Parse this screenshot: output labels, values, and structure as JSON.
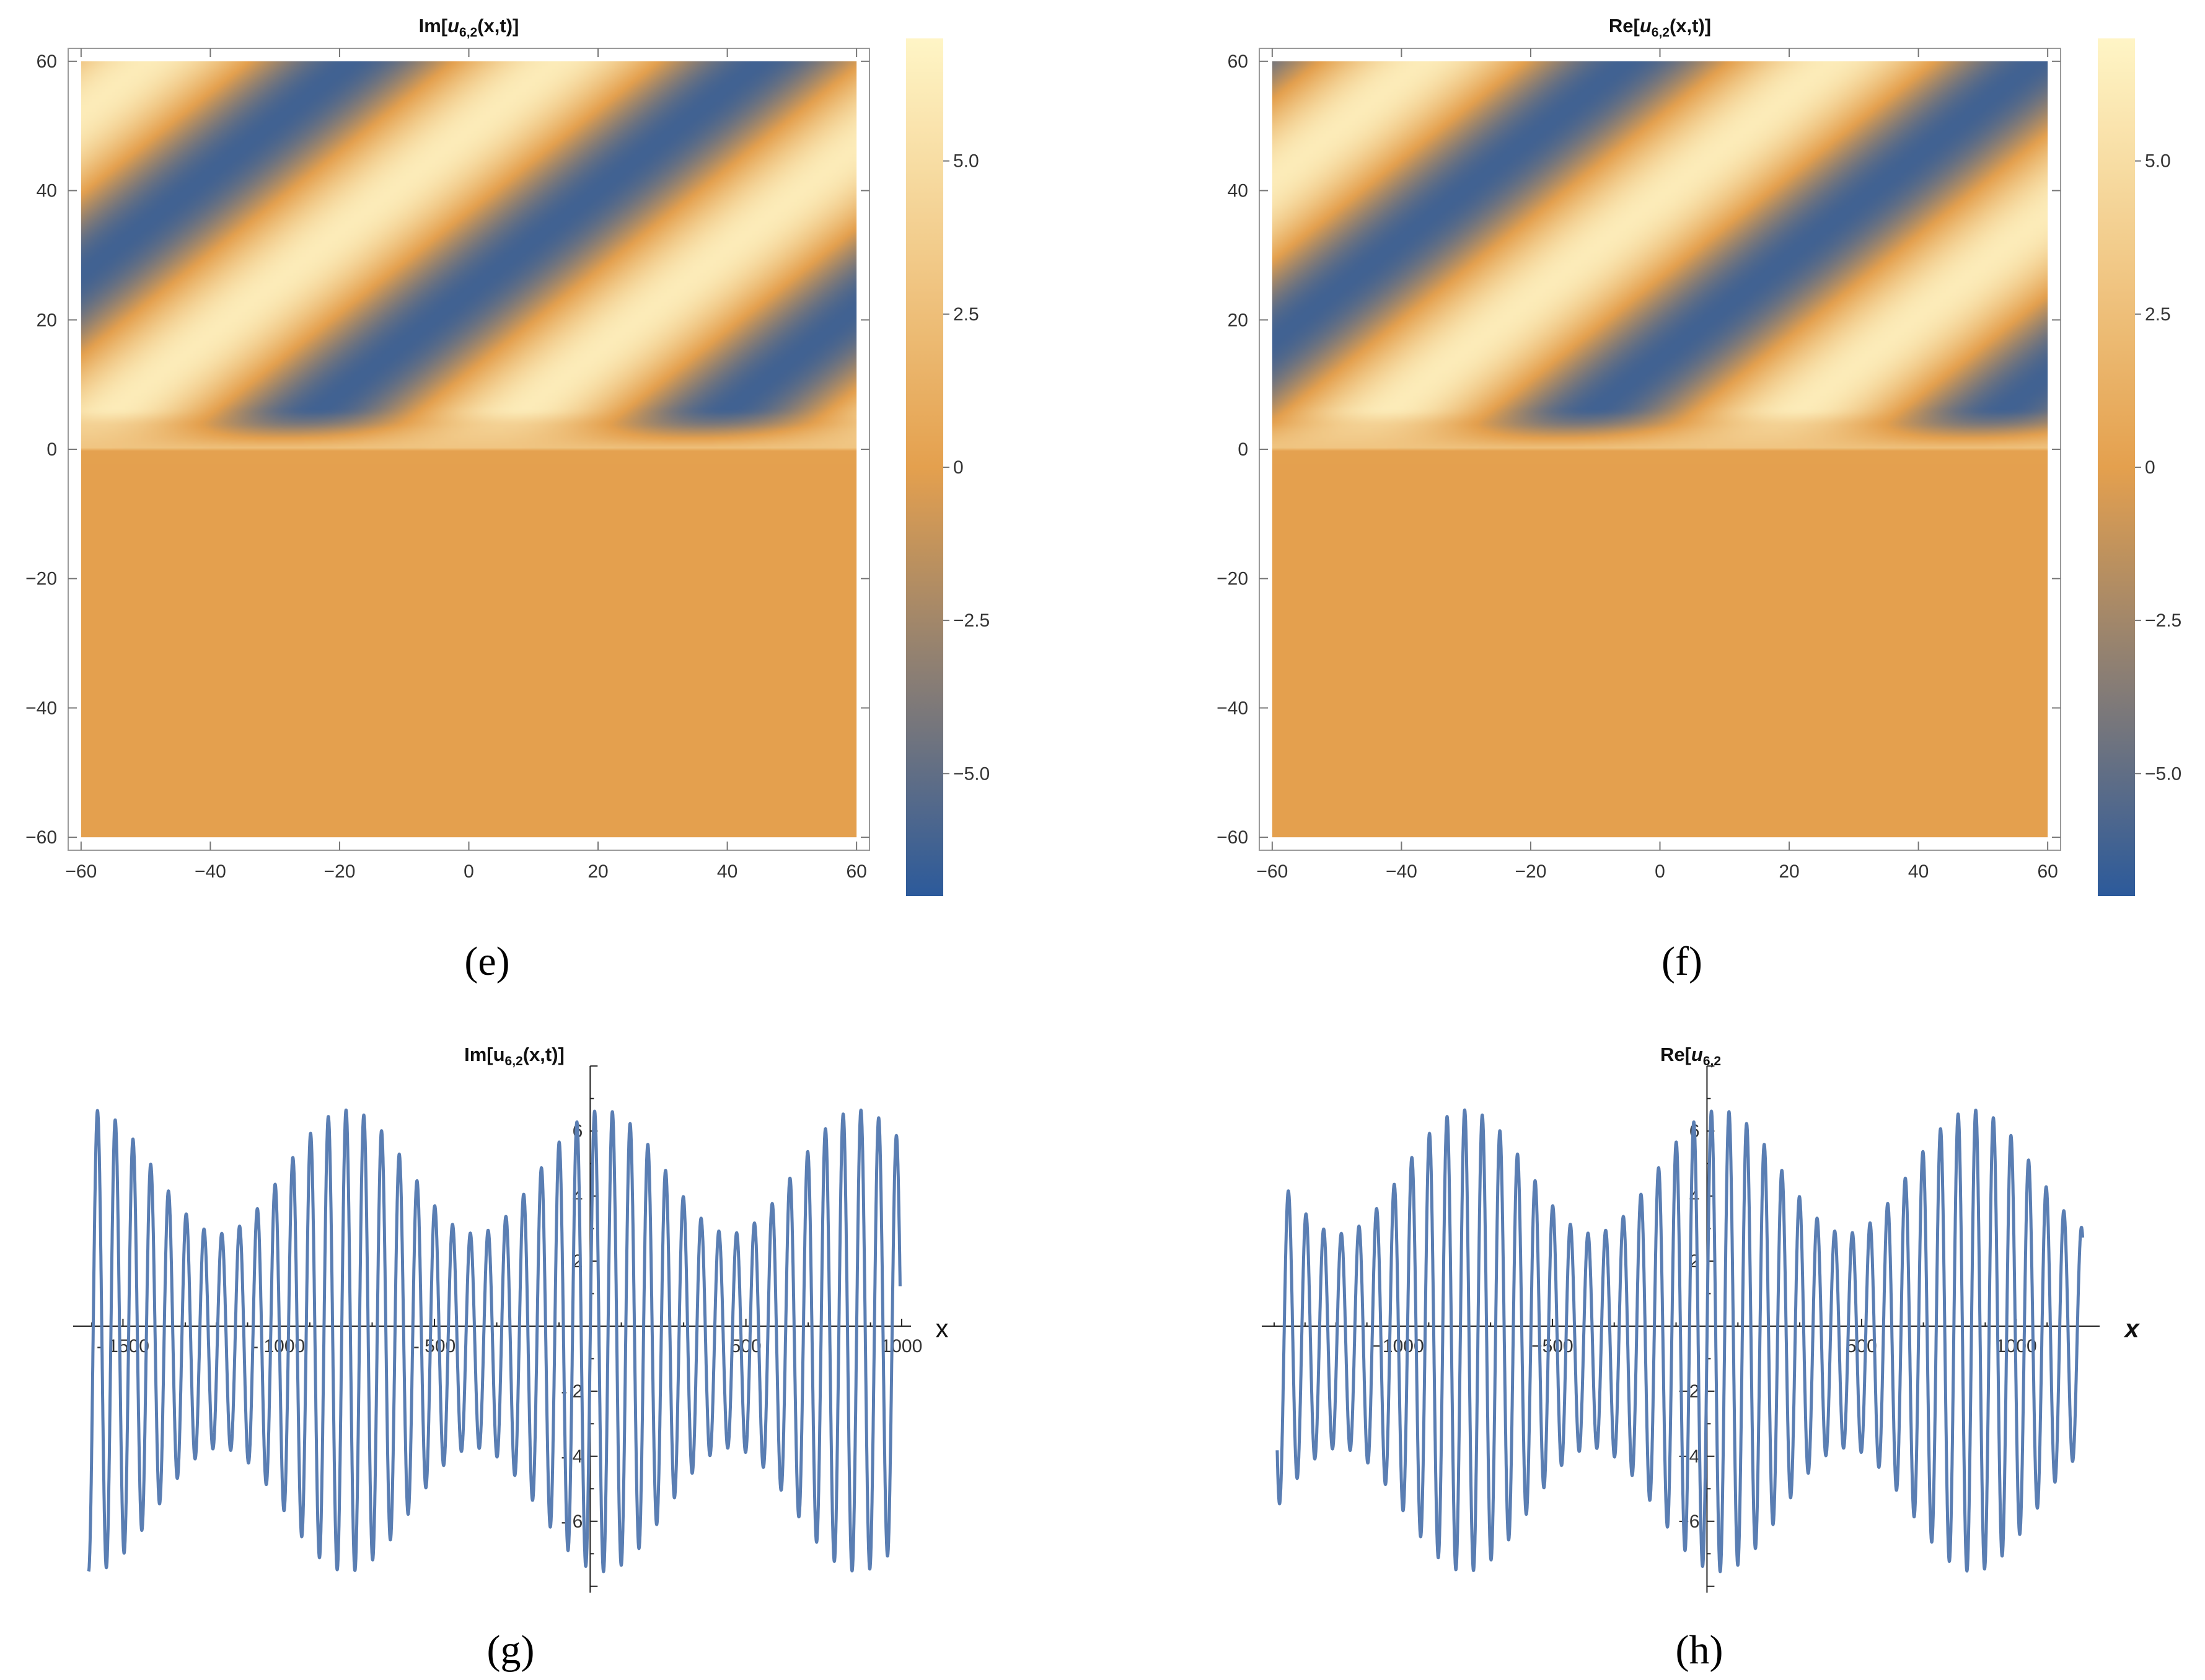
{
  "captions": [
    "(e)",
    "(f)",
    "(g)",
    "(h)"
  ],
  "chart_data": [
    {
      "panel": "e",
      "type": "heatmap",
      "title_prefix": "Im[",
      "title_var": "u",
      "title_sub": "6,2",
      "title_suffix": "(x,t)]",
      "xlim": [
        -62,
        62
      ],
      "ylim": [
        -62,
        62
      ],
      "xticks": [
        -60,
        -40,
        -20,
        0,
        20,
        40,
        60
      ],
      "yticks": [
        -60,
        -40,
        -20,
        0,
        20,
        40,
        60
      ],
      "xtick_labels": [
        "−60",
        "−40",
        "−20",
        "0",
        "20",
        "40",
        "60"
      ],
      "ytick_labels": [
        "−60",
        "−40",
        "−20",
        "0",
        "20",
        "40",
        "60"
      ],
      "colorbar": {
        "range": [
          -7,
          7
        ],
        "ticks": [
          5.0,
          2.5,
          0,
          -2.5,
          -5.0
        ],
        "tick_labels": [
          "5.0",
          "2.5",
          "0",
          "−2.5",
          "−5.0"
        ]
      },
      "colors": {
        "low": "#2c5a9b",
        "zero": "#e4a04e",
        "high": "#fff5c6"
      },
      "field": {
        "amplitude": 6.2,
        "kx": 0.16,
        "kt": 0.3,
        "phase": 1.5,
        "t_zero_boundary": 0
      }
    },
    {
      "panel": "f",
      "type": "heatmap",
      "title_prefix": "Re[",
      "title_var": "u",
      "title_sub": "6,2",
      "title_suffix": "(x,t)]",
      "xlim": [
        -62,
        62
      ],
      "ylim": [
        -62,
        62
      ],
      "xticks": [
        -60,
        -40,
        -20,
        0,
        20,
        40,
        60
      ],
      "yticks": [
        -60,
        -40,
        -20,
        0,
        20,
        40,
        60
      ],
      "xtick_labels": [
        "−60",
        "−40",
        "−20",
        "0",
        "20",
        "40",
        "60"
      ],
      "ytick_labels": [
        "−60",
        "−40",
        "−20",
        "0",
        "20",
        "40",
        "60"
      ],
      "colorbar": {
        "range": [
          -7,
          7
        ],
        "ticks": [
          5.0,
          2.5,
          0,
          -2.5,
          -5.0
        ],
        "tick_labels": [
          "5.0",
          "2.5",
          "0",
          "−2.5",
          "−5.0"
        ]
      },
      "colors": {
        "low": "#2c5a9b",
        "zero": "#e4a04e",
        "high": "#fff5c6"
      },
      "field": {
        "amplitude": 6.2,
        "kx": 0.16,
        "kt": 0.3,
        "phase": 0.2,
        "t_zero_boundary": 0
      }
    },
    {
      "panel": "g",
      "type": "line",
      "title_prefix": "Im[u",
      "title_sub": "6,2",
      "title_suffix": "(x,t)]",
      "xlabel": "x",
      "xlim": [
        -1660,
        1030
      ],
      "ylim": [
        -8.1,
        8.1
      ],
      "xticks": [
        -1500,
        -1000,
        -500,
        500,
        1000
      ],
      "xtick_labels": [
        "- 1500",
        "- 1000",
        "- 500",
        "500",
        "1000"
      ],
      "yticks": [
        6,
        4,
        2,
        -2,
        -4,
        -6
      ],
      "ytick_labels": [
        "6",
        "4",
        "2",
        "- 2",
        "- 4",
        "- 6"
      ],
      "series_color": "#5a7eb3",
      "series": [
        {
          "x_range": [
            -1610,
            995
          ],
          "carrier_period": 57,
          "envelope_period": 820,
          "max": 7.1,
          "min_amp": 3.3,
          "y_offset": -0.45
        }
      ]
    },
    {
      "panel": "h",
      "type": "line",
      "title_prefix": "Re[",
      "title_var": "u",
      "title_sub": "6,2",
      "title_suffix": "",
      "xlabel": "x",
      "xlim": [
        -1440,
        1270
      ],
      "ylim": [
        -8.1,
        8.1
      ],
      "xticks": [
        -1000,
        -500,
        500,
        1000
      ],
      "xtick_labels": [
        "−1000",
        "−500",
        "500",
        "1000"
      ],
      "yticks": [
        6,
        4,
        2,
        -2,
        -4,
        -6
      ],
      "ytick_labels": [
        "6",
        "4",
        "2",
        "−2",
        "−4",
        "−6"
      ],
      "series_color": "#5a7eb3",
      "series": [
        {
          "x_range": [
            -1390,
            1215
          ],
          "carrier_period": 57,
          "envelope_period": 820,
          "max": 7.1,
          "min_amp": 3.3,
          "y_offset": -0.45
        }
      ]
    }
  ]
}
